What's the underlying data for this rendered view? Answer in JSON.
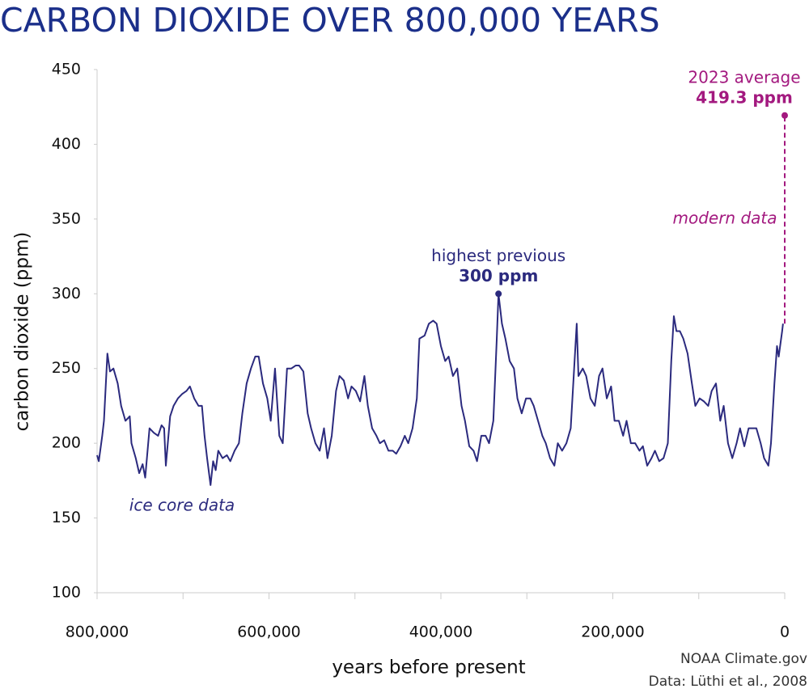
{
  "chart_data": {
    "type": "line",
    "title": "CARBON DIOXIDE OVER 800,000 YEARS",
    "x_label": "years before present",
    "y_label": "carbon dioxide (ppm)",
    "source": [
      "NOAA Climate.gov",
      "Data: Lüthi et al., 2008"
    ],
    "xlim": [
      800000,
      0
    ],
    "ylim": [
      100,
      450
    ],
    "xticks": [
      {
        "value": 800000,
        "label": "800,000"
      },
      {
        "value": 600000,
        "label": "600,000"
      },
      {
        "value": 400000,
        "label": "400,000"
      },
      {
        "value": 200000,
        "label": "200,000"
      },
      0
    ],
    "xminorticks": [
      700000,
      500000,
      300000,
      100000
    ],
    "yticks": [
      100,
      150,
      200,
      250,
      300,
      350,
      400,
      450
    ],
    "grid": false,
    "series": [
      {
        "name": "ice core data",
        "color": "#2b2a7e",
        "dashed": false,
        "x": [
          800000,
          798000,
          794000,
          792000,
          788000,
          785000,
          781000,
          776000,
          772000,
          767000,
          762000,
          760000,
          755000,
          751000,
          747000,
          744000,
          739000,
          734000,
          729000,
          725000,
          722000,
          720000,
          715000,
          711000,
          706000,
          701000,
          696000,
          692000,
          687000,
          682000,
          678000,
          675000,
          672000,
          668000,
          665000,
          662000,
          659000,
          654000,
          649000,
          645000,
          640000,
          635000,
          631000,
          626000,
          621000,
          616000,
          612000,
          607000,
          602000,
          598000,
          593000,
          588000,
          584000,
          579000,
          574000,
          569000,
          565000,
          560000,
          555000,
          551000,
          546000,
          541000,
          536000,
          532000,
          527000,
          522000,
          518000,
          513000,
          508000,
          504000,
          499000,
          494000,
          489000,
          485000,
          480000,
          475000,
          471000,
          466000,
          461000,
          456000,
          452000,
          447000,
          442000,
          438000,
          433000,
          428000,
          425000,
          419000,
          414000,
          409000,
          405000,
          400000,
          395000,
          391000,
          386000,
          381000,
          376000,
          372000,
          367000,
          362000,
          358000,
          353000,
          348000,
          344000,
          339000,
          335000,
          333000,
          329000,
          325000,
          320000,
          315000,
          311000,
          306000,
          301000,
          296000,
          292000,
          287000,
          282000,
          278000,
          273000,
          268000,
          264000,
          259000,
          254000,
          249000,
          245000,
          242000,
          240000,
          235000,
          231000,
          226000,
          221000,
          216000,
          212000,
          207000,
          202000,
          198000,
          193000,
          188000,
          184000,
          179000,
          174000,
          169000,
          165000,
          160000,
          155000,
          151000,
          146000,
          141000,
          136000,
          132000,
          129000,
          126000,
          122000,
          118000,
          113000,
          108000,
          104000,
          99000,
          94000,
          89000,
          85000,
          80000,
          75000,
          71000,
          66000,
          61000,
          56000,
          52000,
          47000,
          42000,
          38000,
          33000,
          28000,
          24000,
          19000,
          16000,
          12000,
          9000,
          7000,
          3000,
          2000
        ],
        "values": [
          192,
          188,
          205,
          215,
          260,
          248,
          250,
          240,
          225,
          215,
          218,
          200,
          190,
          180,
          186,
          177,
          210,
          207,
          205,
          212,
          210,
          185,
          218,
          225,
          230,
          233,
          235,
          238,
          230,
          225,
          225,
          205,
          190,
          172,
          188,
          182,
          195,
          190,
          192,
          188,
          195,
          200,
          220,
          240,
          250,
          258,
          258,
          240,
          230,
          215,
          250,
          205,
          200,
          250,
          250,
          252,
          252,
          248,
          220,
          210,
          200,
          195,
          210,
          190,
          205,
          235,
          245,
          242,
          230,
          238,
          235,
          228,
          245,
          225,
          210,
          205,
          200,
          202,
          195,
          195,
          193,
          198,
          205,
          200,
          210,
          230,
          270,
          272,
          280,
          282,
          280,
          265,
          255,
          258,
          245,
          250,
          225,
          215,
          198,
          195,
          188,
          205,
          205,
          200,
          215,
          270,
          300,
          280,
          270,
          255,
          250,
          230,
          220,
          230,
          230,
          225,
          215,
          205,
          200,
          190,
          185,
          200,
          195,
          200,
          210,
          250,
          280,
          245,
          250,
          245,
          230,
          225,
          245,
          250,
          230,
          238,
          215,
          215,
          205,
          215,
          200,
          200,
          195,
          198,
          185,
          190,
          195,
          188,
          190,
          200,
          255,
          285,
          275,
          275,
          270,
          260,
          240,
          225,
          230,
          228,
          225,
          235,
          240,
          215,
          225,
          200,
          190,
          200,
          210,
          198,
          210,
          210,
          210,
          200,
          190,
          185,
          200,
          240,
          265,
          258,
          275,
          280
        ]
      },
      {
        "name": "modern data",
        "color": "#a3197f",
        "dashed": true,
        "x": [
          0,
          0
        ],
        "values": [
          280,
          419.3
        ]
      }
    ],
    "annotations": [
      {
        "text": "highest previous",
        "label": "300 ppm",
        "x": 333000,
        "y": 300,
        "color": "#2b2a7e"
      },
      {
        "text": "2023 average",
        "label": "419.3 ppm",
        "x": 0,
        "y": 419.3,
        "color": "#a3197f"
      }
    ]
  }
}
